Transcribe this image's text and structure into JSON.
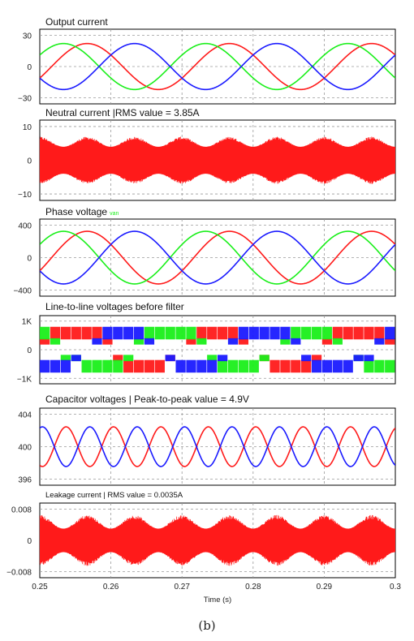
{
  "figure": {
    "caption": "(b)"
  },
  "colors": {
    "red": "#ff1a1a",
    "green": "#1aef1a",
    "blue": "#1a1aff",
    "grid": "#9a9a9a",
    "frame": "#000000"
  },
  "chart_data": [
    {
      "type": "line",
      "title": "Output current",
      "x_range": [
        0.25,
        0.3
      ],
      "ylim": [
        -30,
        30
      ],
      "yticks": [
        "30",
        "0",
        "−30"
      ],
      "grid": true,
      "series": [
        {
          "color": "red",
          "amplitude": 22,
          "phase_deg": -30,
          "frequency_hz": 50
        },
        {
          "color": "green",
          "amplitude": 22,
          "phase_deg": 30,
          "frequency_hz": 50
        },
        {
          "color": "blue",
          "amplitude": 22,
          "phase_deg": -150,
          "frequency_hz": 50
        }
      ]
    },
    {
      "type": "line",
      "title": "Neutral current |RMS value = 3.85A",
      "x_range": [
        0.25,
        0.3
      ],
      "ylim": [
        -10,
        10
      ],
      "yticks": [
        "10",
        "0",
        "−10"
      ],
      "grid": true,
      "series": [
        {
          "color": "red",
          "style": "high-frequency ripple",
          "envelope_max": 7,
          "envelope_min": 4
        }
      ]
    },
    {
      "type": "line",
      "title": "Phase voltage",
      "title_annotation": "van",
      "x_range": [
        0.25,
        0.3
      ],
      "ylim": [
        -400,
        400
      ],
      "yticks": [
        "400",
        "0",
        "−400"
      ],
      "grid": true,
      "series": [
        {
          "color": "red",
          "amplitude": 325,
          "phase_deg": -30,
          "frequency_hz": 50
        },
        {
          "color": "green",
          "amplitude": 325,
          "phase_deg": 30,
          "frequency_hz": 50
        },
        {
          "color": "blue",
          "amplitude": 325,
          "phase_deg": -150,
          "frequency_hz": 50
        }
      ]
    },
    {
      "type": "line",
      "title": "Line-to-line voltages before filter",
      "x_range": [
        0.25,
        0.3
      ],
      "ylim": [
        -1000,
        1000
      ],
      "yticks": [
        "1K",
        "0",
        "−1K"
      ],
      "grid": true,
      "series": [
        {
          "color": "red",
          "style": "PWM pulses",
          "levels": [
            800,
            400,
            -400,
            -800
          ]
        },
        {
          "color": "green",
          "style": "PWM pulses",
          "levels": [
            800,
            400,
            -400,
            -800
          ]
        },
        {
          "color": "blue",
          "style": "PWM pulses",
          "levels": [
            800,
            400,
            -400,
            -800
          ]
        }
      ]
    },
    {
      "type": "line",
      "title": "Capacitor voltages | Peak-to-peak value = 4.9V",
      "x_range": [
        0.25,
        0.3
      ],
      "ylim": [
        396,
        404
      ],
      "yticks": [
        "404",
        "400",
        "396"
      ],
      "grid": true,
      "series": [
        {
          "color": "red",
          "offset": 400,
          "amplitude": 2.45,
          "phase_deg": -110,
          "frequency_hz": 150
        },
        {
          "color": "blue",
          "offset": 400,
          "amplitude": 2.45,
          "phase_deg": 70,
          "frequency_hz": 150
        }
      ]
    },
    {
      "type": "line",
      "title": "Leakage current | RMS value = 0.0035A",
      "x_range": [
        0.25,
        0.3
      ],
      "ylim": [
        -0.008,
        0.008
      ],
      "yticks": [
        "0.008",
        "0",
        "−0.008"
      ],
      "grid": true,
      "xlabel": "Time (s)",
      "xticks": [
        "0.25",
        "0.26",
        "0.27",
        "0.28",
        "0.29",
        "0.3"
      ],
      "series": [
        {
          "color": "red",
          "style": "high-frequency ripple",
          "envelope_max": 0.0065,
          "envelope_min": 0.003
        }
      ]
    }
  ]
}
